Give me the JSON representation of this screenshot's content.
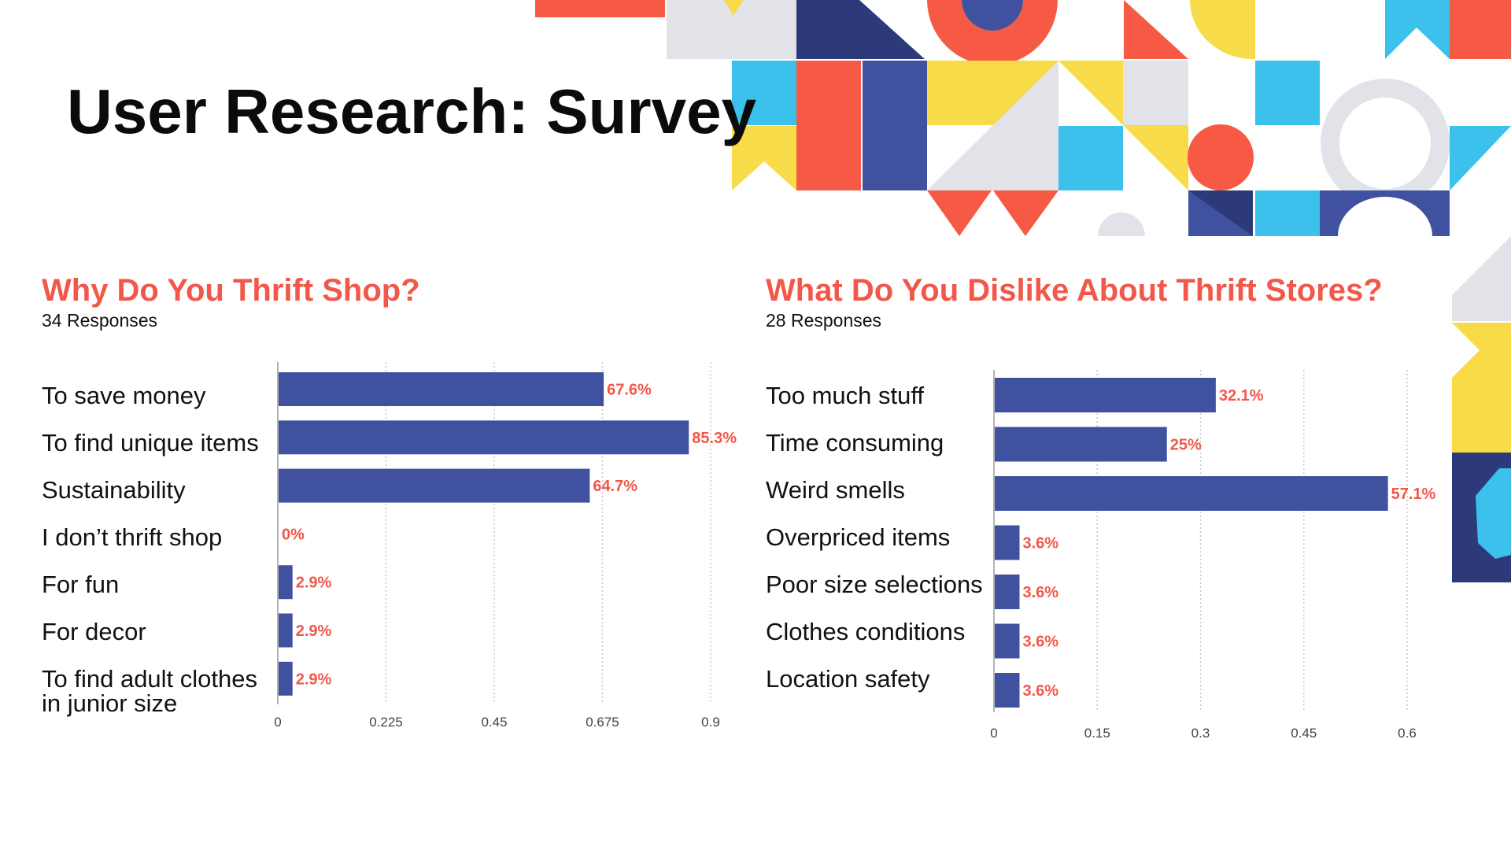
{
  "slide": {
    "title": "User Research: Survey"
  },
  "colors": {
    "bar": "#3f519f",
    "value_label": "#f2574a",
    "heading": "#f2574a",
    "grid": "#c8c8c8",
    "decor_red": "#f65a45",
    "decor_navy": "#2c3a7a",
    "decor_blue": "#3f519f",
    "decor_sky": "#3cc0ec",
    "decor_yellow": "#f8db48",
    "decor_gray": "#e2e3e8"
  },
  "chart_data": [
    {
      "type": "bar",
      "orientation": "horizontal",
      "title": "Why Do You Thrift Shop?",
      "subtitle": "34 Responses",
      "categories": [
        "To save money",
        "To find unique items",
        "Sustainability",
        "I don’t thrift shop",
        "For fun",
        "For decor",
        "To find adult clothes in junior size"
      ],
      "values": [
        0.676,
        0.853,
        0.647,
        0,
        0.029,
        0.029,
        0.029
      ],
      "data_labels": [
        "67.6%",
        "85.3%",
        "64.7%",
        "0%",
        "2.9%",
        "2.9%",
        "2.9%"
      ],
      "xlim": [
        0,
        0.9
      ],
      "x_ticks": [
        "0",
        "0.225",
        "0.45",
        "0.675",
        "0.9"
      ],
      "grid": "vertical dotted"
    },
    {
      "type": "bar",
      "orientation": "horizontal",
      "title": "What Do You Dislike About Thrift Stores?",
      "subtitle": "28 Responses",
      "categories": [
        "Too much stuff",
        "Time consuming",
        "Weird smells",
        "Overpriced items",
        "Poor size selections",
        "Clothes conditions",
        "Location safety"
      ],
      "values": [
        0.321,
        0.25,
        0.571,
        0.036,
        0.036,
        0.036,
        0.036
      ],
      "data_labels": [
        "32.1%",
        "25%",
        "57.1%",
        "3.6%",
        "3.6%",
        "3.6%",
        "3.6%"
      ],
      "xlim": [
        0,
        0.6
      ],
      "x_ticks": [
        "0",
        "0.15",
        "0.3",
        "0.45",
        "0.6"
      ],
      "grid": "vertical dotted"
    }
  ]
}
